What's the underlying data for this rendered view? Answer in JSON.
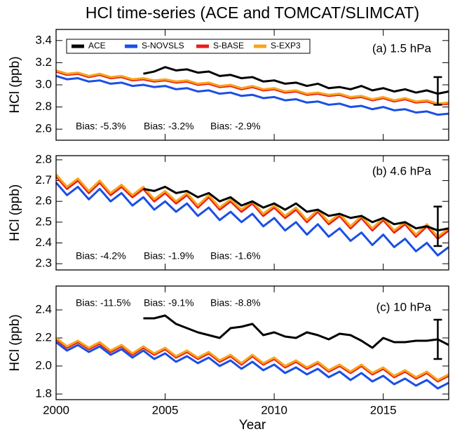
{
  "title": "HCl time-series (ACE and TOMCAT/SLIMCAT)",
  "xlabel": "Year",
  "chart_data": [
    {
      "type": "line",
      "title": "(a) 1.5 hPa",
      "ylabel": "HCl (ppb)",
      "legend": true,
      "x": [
        2000,
        2000.5,
        2001,
        2001.5,
        2002,
        2002.5,
        2003,
        2003.5,
        2004,
        2004.5,
        2005,
        2005.5,
        2006,
        2006.5,
        2007,
        2007.5,
        2008,
        2008.5,
        2009,
        2009.5,
        2010,
        2010.5,
        2011,
        2011.5,
        2012,
        2012.5,
        2013,
        2013.5,
        2014,
        2014.5,
        2015,
        2015.5,
        2016,
        2016.5,
        2017,
        2017.5,
        2018
      ],
      "xlim": [
        2000,
        2018
      ],
      "xticks": [
        2000,
        2005,
        2010,
        2015
      ],
      "ylim": [
        2.5,
        3.5
      ],
      "yticks": [
        2.6,
        2.8,
        {
          "value": 3,
          "label": "3.0"
        },
        3.2,
        3.4
      ],
      "series": [
        {
          "name": "S-NOVSLS",
          "color": "#1a4fe6",
          "values": [
            3.08,
            3.05,
            3.06,
            3.03,
            3.04,
            3.01,
            3.02,
            2.99,
            3.0,
            2.98,
            2.99,
            2.96,
            2.97,
            2.94,
            2.95,
            2.92,
            2.93,
            2.9,
            2.91,
            2.88,
            2.89,
            2.86,
            2.87,
            2.84,
            2.85,
            2.82,
            2.83,
            2.8,
            2.81,
            2.78,
            2.8,
            2.77,
            2.78,
            2.75,
            2.76,
            2.73,
            2.74
          ]
        },
        {
          "name": "S-BASE",
          "color": "#e81c1c",
          "values": [
            3.12,
            3.09,
            3.1,
            3.07,
            3.09,
            3.06,
            3.07,
            3.04,
            3.05,
            3.03,
            3.04,
            3.02,
            3.03,
            3.0,
            3.01,
            2.98,
            2.99,
            2.96,
            2.98,
            2.95,
            2.96,
            2.93,
            2.94,
            2.91,
            2.92,
            2.9,
            2.91,
            2.88,
            2.89,
            2.86,
            2.88,
            2.85,
            2.87,
            2.84,
            2.85,
            2.82,
            2.83
          ]
        },
        {
          "name": "S-EXP3",
          "color": "#f8a51c",
          "values": [
            3.13,
            3.1,
            3.11,
            3.08,
            3.1,
            3.07,
            3.08,
            3.05,
            3.06,
            3.04,
            3.05,
            3.03,
            3.04,
            3.01,
            3.02,
            2.99,
            3.0,
            2.97,
            2.99,
            2.96,
            2.97,
            2.94,
            2.95,
            2.92,
            2.93,
            2.91,
            2.92,
            2.89,
            2.9,
            2.87,
            2.89,
            2.86,
            2.88,
            2.85,
            2.86,
            2.83,
            2.84
          ]
        },
        {
          "name": "ACE",
          "color": "#000000",
          "values": [
            null,
            null,
            null,
            null,
            null,
            null,
            null,
            null,
            3.1,
            3.12,
            3.16,
            3.13,
            3.14,
            3.11,
            3.12,
            3.08,
            3.09,
            3.06,
            3.07,
            3.03,
            3.04,
            3.01,
            3.02,
            2.99,
            3.01,
            2.97,
            2.98,
            2.96,
            2.99,
            2.95,
            2.97,
            2.94,
            2.96,
            2.93,
            2.95,
            2.92,
            2.94
          ]
        }
      ],
      "error_bar": {
        "x": 2017.5,
        "value": 2.945,
        "error": 0.125
      },
      "annotations": [
        {
          "text": "Bias: -5.3%",
          "color": "#1a4fe6"
        },
        {
          "text": "Bias: -3.2%",
          "color": "#e81c1c"
        },
        {
          "text": "Bias: -2.9%",
          "color": "#f8a51c"
        }
      ]
    },
    {
      "type": "line",
      "title": "(b) 4.6 hPa",
      "ylabel": "HCl (ppb)",
      "legend": false,
      "x": [
        2000,
        2000.5,
        2001,
        2001.5,
        2002,
        2002.5,
        2003,
        2003.5,
        2004,
        2004.5,
        2005,
        2005.5,
        2006,
        2006.5,
        2007,
        2007.5,
        2008,
        2008.5,
        2009,
        2009.5,
        2010,
        2010.5,
        2011,
        2011.5,
        2012,
        2012.5,
        2013,
        2013.5,
        2014,
        2014.5,
        2015,
        2015.5,
        2016,
        2016.5,
        2017,
        2017.5,
        2018
      ],
      "xlim": [
        2000,
        2018
      ],
      "xticks": [
        2000,
        2005,
        2010,
        2015
      ],
      "ylim": [
        2.27,
        2.82
      ],
      "yticks": [
        2.3,
        2.4,
        2.5,
        2.6,
        2.7,
        2.8
      ],
      "series": [
        {
          "name": "S-NOVSLS",
          "color": "#1a4fe6",
          "values": [
            2.69,
            2.63,
            2.67,
            2.61,
            2.66,
            2.6,
            2.64,
            2.58,
            2.62,
            2.56,
            2.6,
            2.55,
            2.59,
            2.53,
            2.57,
            2.51,
            2.55,
            2.5,
            2.54,
            2.48,
            2.52,
            2.46,
            2.5,
            2.44,
            2.49,
            2.43,
            2.47,
            2.41,
            2.45,
            2.39,
            2.44,
            2.38,
            2.42,
            2.36,
            2.4,
            2.34,
            2.38
          ]
        },
        {
          "name": "S-BASE",
          "color": "#e81c1c",
          "values": [
            2.72,
            2.66,
            2.7,
            2.64,
            2.69,
            2.63,
            2.67,
            2.62,
            2.66,
            2.6,
            2.64,
            2.59,
            2.63,
            2.57,
            2.62,
            2.56,
            2.6,
            2.55,
            2.59,
            2.53,
            2.57,
            2.52,
            2.56,
            2.5,
            2.55,
            2.49,
            2.53,
            2.47,
            2.52,
            2.46,
            2.51,
            2.45,
            2.49,
            2.43,
            2.48,
            2.42,
            2.46
          ]
        },
        {
          "name": "S-EXP3",
          "color": "#f8a51c",
          "values": [
            2.73,
            2.67,
            2.71,
            2.65,
            2.7,
            2.64,
            2.68,
            2.63,
            2.67,
            2.61,
            2.65,
            2.6,
            2.64,
            2.58,
            2.63,
            2.57,
            2.61,
            2.56,
            2.6,
            2.54,
            2.58,
            2.53,
            2.57,
            2.51,
            2.56,
            2.5,
            2.54,
            2.48,
            2.53,
            2.47,
            2.52,
            2.46,
            2.5,
            2.44,
            2.49,
            2.43,
            2.47
          ]
        },
        {
          "name": "ACE",
          "color": "#000000",
          "values": [
            null,
            null,
            null,
            null,
            null,
            null,
            null,
            null,
            2.66,
            2.65,
            2.67,
            2.64,
            2.65,
            2.62,
            2.64,
            2.6,
            2.62,
            2.58,
            2.6,
            2.57,
            2.59,
            2.56,
            2.59,
            2.55,
            2.56,
            2.53,
            2.54,
            2.52,
            2.53,
            2.5,
            2.52,
            2.49,
            2.5,
            2.47,
            2.48,
            2.46,
            2.47
          ]
        }
      ],
      "error_bar": {
        "x": 2017.5,
        "value": 2.48,
        "error": 0.095
      },
      "annotations": [
        {
          "text": "Bias: -4.2%",
          "color": "#1a4fe6"
        },
        {
          "text": "Bias: -1.9%",
          "color": "#e81c1c"
        },
        {
          "text": "Bias: -1.6%",
          "color": "#f8a51c"
        }
      ]
    },
    {
      "type": "line",
      "title": "(c) 10 hPa",
      "ylabel": "HCl (ppb)",
      "legend": false,
      "x": [
        2000,
        2000.5,
        2001,
        2001.5,
        2002,
        2002.5,
        2003,
        2003.5,
        2004,
        2004.5,
        2005,
        2005.5,
        2006,
        2006.5,
        2007,
        2007.5,
        2008,
        2008.5,
        2009,
        2009.5,
        2010,
        2010.5,
        2011,
        2011.5,
        2012,
        2012.5,
        2013,
        2013.5,
        2014,
        2014.5,
        2015,
        2015.5,
        2016,
        2016.5,
        2017,
        2017.5,
        2018
      ],
      "xlim": [
        2000,
        2018
      ],
      "xticks": [
        2000,
        2005,
        2010,
        2015
      ],
      "ylim": [
        1.76,
        2.57
      ],
      "yticks": [
        1.8,
        {
          "value": 2,
          "label": "2.0"
        },
        2.2,
        2.4
      ],
      "series": [
        {
          "name": "S-NOVSLS",
          "color": "#1a4fe6",
          "values": [
            2.17,
            2.11,
            2.15,
            2.1,
            2.14,
            2.08,
            2.12,
            2.06,
            2.11,
            2.05,
            2.09,
            2.03,
            2.07,
            2.02,
            2.06,
            2.0,
            2.04,
            1.98,
            2.03,
            1.97,
            2.01,
            1.95,
            1.99,
            1.94,
            1.98,
            1.92,
            1.96,
            1.9,
            1.95,
            1.89,
            1.93,
            1.87,
            1.91,
            1.86,
            1.9,
            1.84,
            1.88
          ]
        },
        {
          "name": "S-BASE",
          "color": "#e81c1c",
          "values": [
            2.19,
            2.13,
            2.17,
            2.12,
            2.16,
            2.1,
            2.14,
            2.08,
            2.13,
            2.08,
            2.12,
            2.06,
            2.1,
            2.05,
            2.09,
            2.03,
            2.07,
            2.01,
            2.07,
            2.01,
            2.05,
            1.99,
            2.03,
            1.98,
            2.02,
            1.96,
            2.0,
            1.95,
            2.0,
            1.94,
            1.98,
            1.92,
            1.96,
            1.91,
            1.95,
            1.89,
            1.93
          ]
        },
        {
          "name": "S-EXP3",
          "color": "#f8a51c",
          "values": [
            2.2,
            2.14,
            2.18,
            2.13,
            2.17,
            2.11,
            2.15,
            2.09,
            2.14,
            2.09,
            2.13,
            2.07,
            2.11,
            2.06,
            2.1,
            2.04,
            2.08,
            2.02,
            2.08,
            2.02,
            2.06,
            2.0,
            2.04,
            1.99,
            2.03,
            1.97,
            2.01,
            1.96,
            2.01,
            1.95,
            1.99,
            1.93,
            1.97,
            1.92,
            1.96,
            1.9,
            1.94
          ]
        },
        {
          "name": "ACE",
          "color": "#000000",
          "values": [
            null,
            null,
            null,
            null,
            null,
            null,
            null,
            null,
            2.34,
            2.34,
            2.36,
            2.3,
            2.27,
            2.24,
            2.22,
            2.2,
            2.27,
            2.28,
            2.3,
            2.22,
            2.24,
            2.21,
            2.2,
            2.24,
            2.22,
            2.19,
            2.23,
            2.22,
            2.18,
            2.13,
            2.2,
            2.17,
            2.17,
            2.18,
            2.18,
            2.19,
            2.15
          ]
        }
      ],
      "error_bar": {
        "x": 2017.5,
        "value": 2.19,
        "error": 0.14
      },
      "annotations": [
        {
          "text": "Bias: -11.5%",
          "color": "#1a4fe6"
        },
        {
          "text": "Bias: -9.1%",
          "color": "#e81c1c"
        },
        {
          "text": "Bias: -8.8%",
          "color": "#f8a51c"
        }
      ]
    }
  ]
}
